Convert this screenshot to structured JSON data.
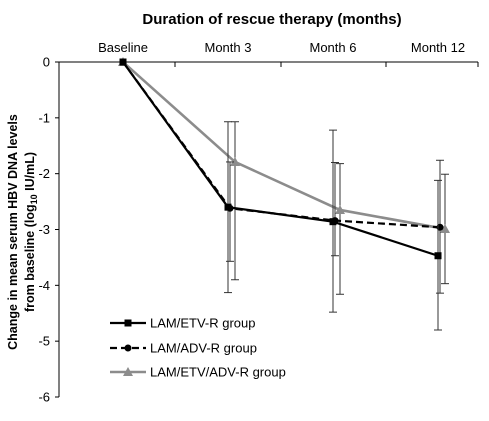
{
  "chart_data": {
    "type": "line",
    "title": "Duration of rescue therapy (months)",
    "ylabel_line1": "Change in mean serum HBV DNA levels",
    "ylabel_line2_pre": "from baseline  (log",
    "ylabel_line2_sub": "10",
    "ylabel_line2_post": " IU/mL)",
    "categories": [
      "Baseline",
      "Month 3",
      "Month 6",
      "Month 12"
    ],
    "ylim": [
      -6,
      0
    ],
    "yticks": [
      "0",
      "-1",
      "-2",
      "-3",
      "-4",
      "-5",
      "-6"
    ],
    "x_axis_position": "top",
    "grid": false,
    "legend_position": "bottom-left",
    "series": [
      {
        "name": "LAM/ETV-R group",
        "color": "#000000",
        "dash": "solid",
        "marker": "square",
        "values": [
          0,
          -2.6,
          -2.86,
          -3.47
        ],
        "err_low": [
          null,
          -4.13,
          -4.48,
          -4.8
        ],
        "err_high": [
          null,
          -1.07,
          -1.22,
          -2.12
        ]
      },
      {
        "name": "LAM/ADV-R group",
        "color": "#000000",
        "dash": "dashed",
        "marker": "circle",
        "values": [
          0,
          -2.62,
          -2.84,
          -2.96
        ],
        "err_low": [
          null,
          -3.57,
          -3.47,
          -4.14
        ],
        "err_high": [
          null,
          -1.79,
          -1.8,
          -1.76
        ]
      },
      {
        "name": "LAM/ETV/ADV-R group",
        "color": "#8c8c8c",
        "dash": "solid",
        "marker": "triangle",
        "values": [
          0,
          -1.79,
          -2.65,
          -2.99
        ],
        "err_low": [
          null,
          -3.9,
          -4.16,
          -3.97
        ],
        "err_high": [
          null,
          -1.07,
          -1.82,
          -2.01
        ]
      }
    ]
  }
}
